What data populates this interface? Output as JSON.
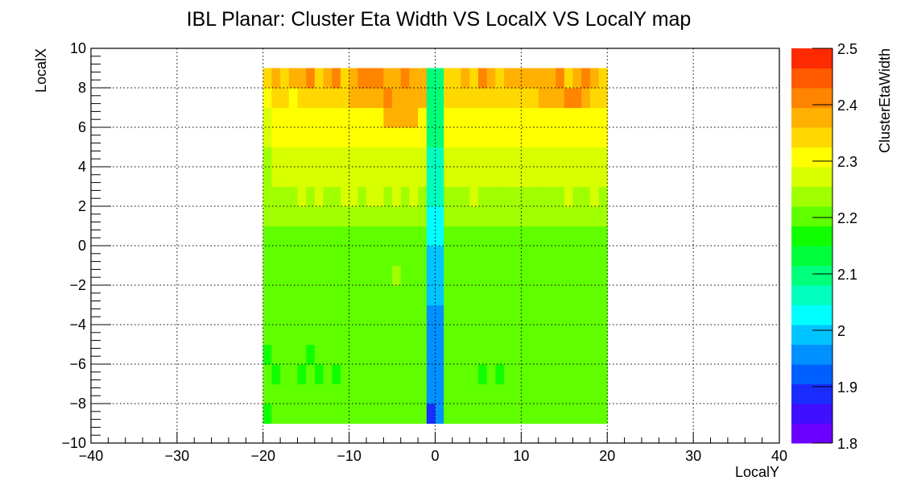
{
  "chart_data": {
    "type": "heatmap",
    "title": "IBL Planar: Cluster Eta Width VS LocalX VS LocalY map",
    "xlabel": "LocalY",
    "ylabel": "LocalX",
    "zlabel": "ClusterEtaWidth",
    "xlim": [
      -40,
      40
    ],
    "ylim": [
      -10,
      10
    ],
    "zlim": [
      1.8,
      2.5
    ],
    "x_ticks": [
      -40,
      -30,
      -20,
      -10,
      0,
      10,
      20,
      30,
      40
    ],
    "x_tick_labels": [
      "−40",
      "−30",
      "−20",
      "−10",
      "0",
      "10",
      "20",
      "30",
      "40"
    ],
    "y_ticks": [
      -10,
      -8,
      -6,
      -4,
      -2,
      0,
      2,
      4,
      6,
      8,
      10
    ],
    "y_tick_labels": [
      "−10",
      "−8",
      "−6",
      "−4",
      "−2",
      "0",
      "2",
      "4",
      "6",
      "8",
      "10"
    ],
    "z_ticks": [
      1.8,
      1.9,
      2.0,
      2.1,
      2.2,
      2.3,
      2.4,
      2.5
    ],
    "z_tick_labels": [
      "1.8",
      "1.9",
      "2",
      "2.1",
      "2.2",
      "2.3",
      "2.4",
      "2.5"
    ],
    "grid": true,
    "x_bin_edges": [
      -20,
      -19,
      -18,
      -17,
      -16,
      -15,
      -14,
      -13,
      -12,
      -11,
      -10,
      -9,
      -8,
      -7,
      -6,
      -5,
      -4,
      -3,
      -2,
      -1,
      0,
      1,
      2,
      3,
      4,
      5,
      6,
      7,
      8,
      9,
      10,
      11,
      12,
      13,
      14,
      15,
      16,
      17,
      18,
      19,
      20
    ],
    "y_bin_edges": [
      -9,
      -8,
      -7,
      -6,
      -5,
      -4,
      -3,
      -2,
      -1,
      0,
      1,
      2,
      3,
      4,
      5,
      6,
      7,
      8,
      9
    ],
    "z_rows_bottom_to_top": [
      [
        2.18,
        2.2,
        2.2,
        2.2,
        2.2,
        2.2,
        2.2,
        2.2,
        2.2,
        2.2,
        2.2,
        2.2,
        2.2,
        2.2,
        2.2,
        2.2,
        2.2,
        2.2,
        2.2,
        1.9,
        1.95,
        2.2,
        2.2,
        2.2,
        2.2,
        2.2,
        2.2,
        2.2,
        2.2,
        2.2,
        2.2,
        2.2,
        2.2,
        2.2,
        2.2,
        2.2,
        2.2,
        2.2,
        2.2,
        2.2
      ],
      [
        2.19,
        2.2,
        2.2,
        2.2,
        2.2,
        2.2,
        2.2,
        2.2,
        2.2,
        2.2,
        2.2,
        2.2,
        2.2,
        2.2,
        2.2,
        2.2,
        2.2,
        2.2,
        2.2,
        1.95,
        1.95,
        2.2,
        2.19,
        2.2,
        2.2,
        2.2,
        2.2,
        2.2,
        2.2,
        2.2,
        2.2,
        2.2,
        2.2,
        2.2,
        2.2,
        2.2,
        2.2,
        2.2,
        2.2,
        2.2
      ],
      [
        2.2,
        2.18,
        2.2,
        2.2,
        2.17,
        2.2,
        2.17,
        2.2,
        2.17,
        2.2,
        2.2,
        2.2,
        2.2,
        2.2,
        2.2,
        2.2,
        2.2,
        2.2,
        2.2,
        1.95,
        1.95,
        2.2,
        2.2,
        2.2,
        2.2,
        2.18,
        2.2,
        2.17,
        2.2,
        2.2,
        2.2,
        2.2,
        2.2,
        2.2,
        2.2,
        2.2,
        2.2,
        2.2,
        2.2,
        2.2
      ],
      [
        2.18,
        2.2,
        2.2,
        2.2,
        2.2,
        2.16,
        2.2,
        2.2,
        2.2,
        2.2,
        2.2,
        2.2,
        2.2,
        2.2,
        2.2,
        2.2,
        2.2,
        2.2,
        2.2,
        1.96,
        1.96,
        2.2,
        2.2,
        2.2,
        2.2,
        2.2,
        2.2,
        2.2,
        2.19,
        2.2,
        2.2,
        2.2,
        2.2,
        2.2,
        2.2,
        2.2,
        2.2,
        2.2,
        2.2,
        2.19
      ],
      [
        2.2,
        2.2,
        2.2,
        2.2,
        2.2,
        2.2,
        2.2,
        2.2,
        2.2,
        2.2,
        2.2,
        2.2,
        2.2,
        2.2,
        2.2,
        2.2,
        2.2,
        2.2,
        2.2,
        1.96,
        1.97,
        2.2,
        2.2,
        2.2,
        2.2,
        2.2,
        2.2,
        2.2,
        2.2,
        2.2,
        2.2,
        2.2,
        2.2,
        2.2,
        2.2,
        2.2,
        2.2,
        2.2,
        2.2,
        2.2
      ],
      [
        2.2,
        2.2,
        2.2,
        2.2,
        2.2,
        2.2,
        2.2,
        2.2,
        2.2,
        2.2,
        2.2,
        2.2,
        2.2,
        2.2,
        2.2,
        2.2,
        2.2,
        2.2,
        2.2,
        1.97,
        1.97,
        2.2,
        2.19,
        2.2,
        2.2,
        2.2,
        2.2,
        2.2,
        2.2,
        2.2,
        2.2,
        2.2,
        2.2,
        2.2,
        2.2,
        2.2,
        2.2,
        2.2,
        2.2,
        2.2
      ],
      [
        2.2,
        2.2,
        2.2,
        2.2,
        2.2,
        2.2,
        2.2,
        2.2,
        2.2,
        2.2,
        2.2,
        2.2,
        2.2,
        2.2,
        2.2,
        2.2,
        2.2,
        2.2,
        2.2,
        1.98,
        1.98,
        2.2,
        2.2,
        2.2,
        2.2,
        2.2,
        2.2,
        2.2,
        2.2,
        2.2,
        2.2,
        2.2,
        2.2,
        2.2,
        2.2,
        2.2,
        2.2,
        2.21,
        2.2,
        2.2
      ],
      [
        2.2,
        2.2,
        2.2,
        2.2,
        2.2,
        2.2,
        2.2,
        2.2,
        2.2,
        2.2,
        2.2,
        2.2,
        2.2,
        2.2,
        2.21,
        2.23,
        2.2,
        2.2,
        2.2,
        1.99,
        1.99,
        2.2,
        2.2,
        2.2,
        2.2,
        2.2,
        2.2,
        2.2,
        2.2,
        2.2,
        2.2,
        2.2,
        2.2,
        2.21,
        2.2,
        2.2,
        2.2,
        2.2,
        2.2,
        2.2
      ],
      [
        2.2,
        2.2,
        2.2,
        2.2,
        2.2,
        2.2,
        2.2,
        2.2,
        2.2,
        2.2,
        2.2,
        2.2,
        2.2,
        2.2,
        2.2,
        2.2,
        2.2,
        2.2,
        2.2,
        1.99,
        1.99,
        2.2,
        2.2,
        2.2,
        2.2,
        2.2,
        2.2,
        2.2,
        2.2,
        2.2,
        2.2,
        2.2,
        2.2,
        2.2,
        2.2,
        2.2,
        2.2,
        2.2,
        2.2,
        2.2
      ],
      [
        2.2,
        2.21,
        2.2,
        2.21,
        2.21,
        2.21,
        2.21,
        2.21,
        2.21,
        2.21,
        2.21,
        2.21,
        2.21,
        2.21,
        2.21,
        2.21,
        2.21,
        2.21,
        2.21,
        2.02,
        2.02,
        2.21,
        2.21,
        2.21,
        2.21,
        2.21,
        2.21,
        2.21,
        2.21,
        2.21,
        2.21,
        2.21,
        2.21,
        2.21,
        2.21,
        2.21,
        2.21,
        2.21,
        2.21,
        2.21
      ],
      [
        2.23,
        2.24,
        2.24,
        2.25,
        2.25,
        2.24,
        2.25,
        2.24,
        2.25,
        2.24,
        2.25,
        2.24,
        2.25,
        2.25,
        2.25,
        2.24,
        2.24,
        2.25,
        2.24,
        2.04,
        2.04,
        2.24,
        2.24,
        2.24,
        2.24,
        2.24,
        2.24,
        2.24,
        2.24,
        2.24,
        2.24,
        2.24,
        2.24,
        2.24,
        2.24,
        2.24,
        2.24,
        2.24,
        2.24,
        2.24
      ],
      [
        2.24,
        2.25,
        2.25,
        2.25,
        2.26,
        2.25,
        2.26,
        2.25,
        2.25,
        2.26,
        2.26,
        2.25,
        2.26,
        2.26,
        2.25,
        2.26,
        2.25,
        2.26,
        2.25,
        2.05,
        2.05,
        2.25,
        2.25,
        2.25,
        2.26,
        2.25,
        2.25,
        2.25,
        2.25,
        2.25,
        2.25,
        2.25,
        2.25,
        2.25,
        2.25,
        2.26,
        2.25,
        2.25,
        2.27,
        2.25
      ],
      [
        2.25,
        2.26,
        2.26,
        2.26,
        2.26,
        2.26,
        2.26,
        2.26,
        2.26,
        2.26,
        2.26,
        2.26,
        2.26,
        2.26,
        2.26,
        2.26,
        2.26,
        2.27,
        2.26,
        2.06,
        2.06,
        2.26,
        2.26,
        2.26,
        2.26,
        2.26,
        2.26,
        2.26,
        2.26,
        2.26,
        2.26,
        2.26,
        2.26,
        2.27,
        2.26,
        2.26,
        2.26,
        2.26,
        2.26,
        2.26
      ],
      [
        2.25,
        2.27,
        2.27,
        2.27,
        2.27,
        2.27,
        2.27,
        2.27,
        2.27,
        2.27,
        2.27,
        2.27,
        2.27,
        2.27,
        2.27,
        2.27,
        2.27,
        2.27,
        2.27,
        2.07,
        2.07,
        2.27,
        2.27,
        2.27,
        2.27,
        2.27,
        2.27,
        2.27,
        2.27,
        2.27,
        2.27,
        2.27,
        2.27,
        2.27,
        2.27,
        2.27,
        2.27,
        2.27,
        2.27,
        2.27
      ],
      [
        2.28,
        2.29,
        2.29,
        2.29,
        2.29,
        2.29,
        2.29,
        2.29,
        2.29,
        2.29,
        2.29,
        2.29,
        2.3,
        2.3,
        2.3,
        2.3,
        2.3,
        2.3,
        2.29,
        2.08,
        2.08,
        2.3,
        2.3,
        2.3,
        2.29,
        2.29,
        2.29,
        2.29,
        2.29,
        2.29,
        2.3,
        2.3,
        2.3,
        2.3,
        2.3,
        2.3,
        2.3,
        2.29,
        2.29,
        2.29
      ],
      [
        2.28,
        2.3,
        2.3,
        2.3,
        2.3,
        2.3,
        2.3,
        2.3,
        2.3,
        2.3,
        2.3,
        2.3,
        2.3,
        2.3,
        2.37,
        2.37,
        2.37,
        2.37,
        2.3,
        2.1,
        2.1,
        2.3,
        2.3,
        2.3,
        2.3,
        2.3,
        2.3,
        2.3,
        2.3,
        2.3,
        2.3,
        2.3,
        2.3,
        2.3,
        2.3,
        2.3,
        2.3,
        2.3,
        2.3,
        2.29
      ],
      [
        2.32,
        2.33,
        2.33,
        2.32,
        2.33,
        2.34,
        2.33,
        2.33,
        2.33,
        2.36,
        2.38,
        2.38,
        2.38,
        2.38,
        2.4,
        2.38,
        2.38,
        2.38,
        2.38,
        2.1,
        2.1,
        2.33,
        2.36,
        2.36,
        2.36,
        2.36,
        2.34,
        2.34,
        2.36,
        2.36,
        2.36,
        2.36,
        2.38,
        2.38,
        2.38,
        2.4,
        2.4,
        2.38,
        2.36,
        2.33
      ],
      [
        2.35,
        2.38,
        2.36,
        2.38,
        2.38,
        2.4,
        2.36,
        2.38,
        2.4,
        2.36,
        2.38,
        2.4,
        2.41,
        2.41,
        2.38,
        2.38,
        2.4,
        2.38,
        2.38,
        2.11,
        2.11,
        2.36,
        2.33,
        2.38,
        2.36,
        2.4,
        2.38,
        2.36,
        2.38,
        2.38,
        2.38,
        2.38,
        2.38,
        2.38,
        2.4,
        2.36,
        2.38,
        2.4,
        2.38,
        2.34
      ]
    ]
  }
}
